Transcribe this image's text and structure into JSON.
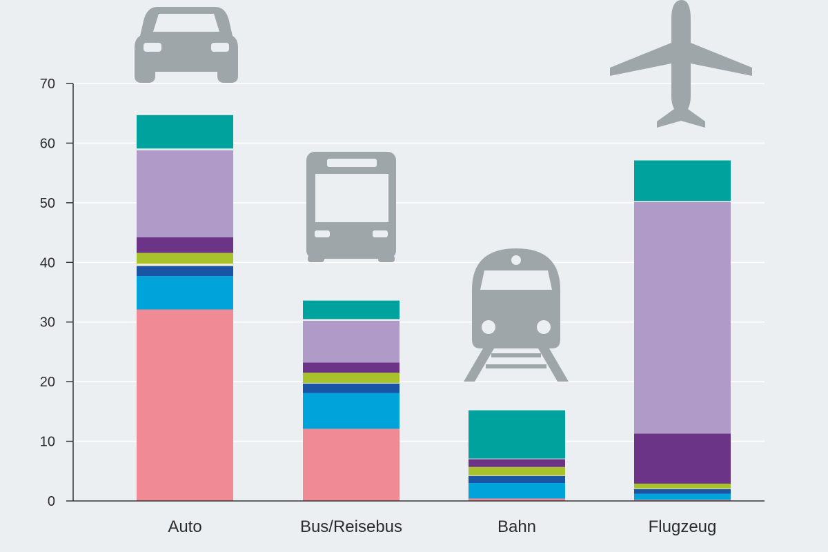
{
  "chart_data": {
    "type": "bar",
    "stacked": true,
    "categories": [
      "Auto",
      "Bus/Reisebus",
      "Bahn",
      "Flugzeug"
    ],
    "ylim": [
      0,
      70
    ],
    "yticks": [
      0,
      10,
      20,
      30,
      40,
      50,
      60,
      70
    ],
    "grid": true,
    "legend": "none",
    "icons": [
      "car-icon",
      "bus-icon",
      "train-icon",
      "airplane-icon"
    ],
    "series": [
      {
        "color": "#f08a94",
        "values": [
          32.1,
          12.1,
          0.4,
          0.2
        ]
      },
      {
        "color": "#00a3da",
        "values": [
          5.6,
          6.0,
          2.6,
          1.0
        ]
      },
      {
        "color": "#1a55a5",
        "values": [
          1.7,
          1.6,
          1.2,
          0.8
        ]
      },
      {
        "color": "#f4efcc",
        "values": [
          0.4,
          0.1,
          0.1,
          0.1
        ]
      },
      {
        "color": "#a8c22b",
        "values": [
          1.8,
          1.7,
          1.4,
          0.8
        ]
      },
      {
        "color": "#6c3487",
        "values": [
          2.6,
          1.7,
          1.3,
          8.4
        ]
      },
      {
        "color": "#b09bc8",
        "values": [
          14.6,
          7.0,
          0.0,
          38.8
        ]
      },
      {
        "color": "#e2ebe9",
        "values": [
          0.3,
          0.3,
          0.1,
          0.2
        ]
      },
      {
        "color": "#00a29d",
        "values": [
          5.6,
          3.1,
          8.1,
          6.8
        ]
      }
    ]
  }
}
